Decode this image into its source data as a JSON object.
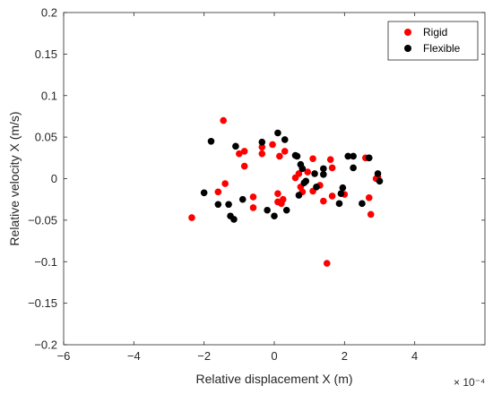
{
  "chart_data": {
    "type": "scatter",
    "xlabel": "Relative displacement X (m)",
    "ylabel": "Relative velocity X (m/s)",
    "x_exponent_label": "× 10⁻⁴",
    "xlim": [
      -6,
      6
    ],
    "ylim": [
      -0.2,
      0.2
    ],
    "x_ticks": [
      -6,
      -4,
      -2,
      0,
      2,
      4
    ],
    "x_tick_labels": [
      "−6",
      "−4",
      "−2",
      "0",
      "2",
      "4"
    ],
    "y_ticks": [
      -0.2,
      -0.15,
      -0.1,
      -0.05,
      0,
      0.05,
      0.1,
      0.15,
      0.2
    ],
    "y_tick_labels": [
      "−0.2",
      "−0.15",
      "−0.1",
      "−0.05",
      "0",
      "0.05",
      "0.1",
      "0.15",
      "0.2"
    ],
    "grid": false,
    "legend_position": "top-right",
    "series": [
      {
        "name": "Rigid",
        "color": "#ff0000",
        "points": [
          [
            -2.35,
            -0.047
          ],
          [
            -1.6,
            -0.016
          ],
          [
            -1.45,
            0.07
          ],
          [
            -1.4,
            -0.006
          ],
          [
            -1.0,
            0.03
          ],
          [
            -0.85,
            0.033
          ],
          [
            -0.85,
            0.015
          ],
          [
            -0.6,
            -0.022
          ],
          [
            -0.6,
            -0.035
          ],
          [
            -0.35,
            0.038
          ],
          [
            -0.35,
            0.03
          ],
          [
            -0.05,
            0.041
          ],
          [
            0.1,
            -0.018
          ],
          [
            0.1,
            -0.028
          ],
          [
            0.15,
            0.027
          ],
          [
            0.2,
            -0.03
          ],
          [
            0.25,
            -0.025
          ],
          [
            0.3,
            0.033
          ],
          [
            0.6,
            0.001
          ],
          [
            0.7,
            0.006
          ],
          [
            0.75,
            -0.01
          ],
          [
            0.8,
            -0.016
          ],
          [
            0.95,
            0.008
          ],
          [
            1.1,
            0.024
          ],
          [
            1.1,
            -0.015
          ],
          [
            1.3,
            -0.008
          ],
          [
            1.4,
            -0.027
          ],
          [
            1.5,
            -0.102
          ],
          [
            1.6,
            0.023
          ],
          [
            1.65,
            0.013
          ],
          [
            1.65,
            -0.021
          ],
          [
            2.0,
            -0.019
          ],
          [
            2.6,
            0.025
          ],
          [
            2.7,
            -0.023
          ],
          [
            2.75,
            -0.043
          ],
          [
            2.9,
            0.0
          ],
          [
            2.95,
            0.002
          ]
        ]
      },
      {
        "name": "Flexible",
        "color": "#000000",
        "points": [
          [
            -2.0,
            -0.017
          ],
          [
            -1.8,
            0.045
          ],
          [
            -1.6,
            -0.031
          ],
          [
            -1.3,
            -0.031
          ],
          [
            -1.25,
            -0.045
          ],
          [
            -1.15,
            -0.049
          ],
          [
            -1.1,
            0.039
          ],
          [
            -0.9,
            -0.025
          ],
          [
            -0.35,
            0.044
          ],
          [
            -0.2,
            -0.038
          ],
          [
            0.0,
            -0.045
          ],
          [
            0.1,
            0.055
          ],
          [
            0.3,
            0.047
          ],
          [
            0.35,
            -0.038
          ],
          [
            0.6,
            0.028
          ],
          [
            0.65,
            0.027
          ],
          [
            0.7,
            -0.02
          ],
          [
            0.75,
            0.017
          ],
          [
            0.8,
            0.012
          ],
          [
            0.85,
            -0.005
          ],
          [
            0.9,
            -0.003
          ],
          [
            1.15,
            0.006
          ],
          [
            1.2,
            -0.01
          ],
          [
            1.4,
            0.012
          ],
          [
            1.4,
            0.005
          ],
          [
            1.85,
            -0.03
          ],
          [
            1.9,
            -0.018
          ],
          [
            1.95,
            -0.011
          ],
          [
            2.1,
            0.027
          ],
          [
            2.25,
            0.027
          ],
          [
            2.25,
            0.013
          ],
          [
            2.5,
            -0.03
          ],
          [
            2.7,
            0.025
          ],
          [
            2.95,
            0.006
          ],
          [
            3.0,
            -0.003
          ]
        ]
      }
    ]
  }
}
